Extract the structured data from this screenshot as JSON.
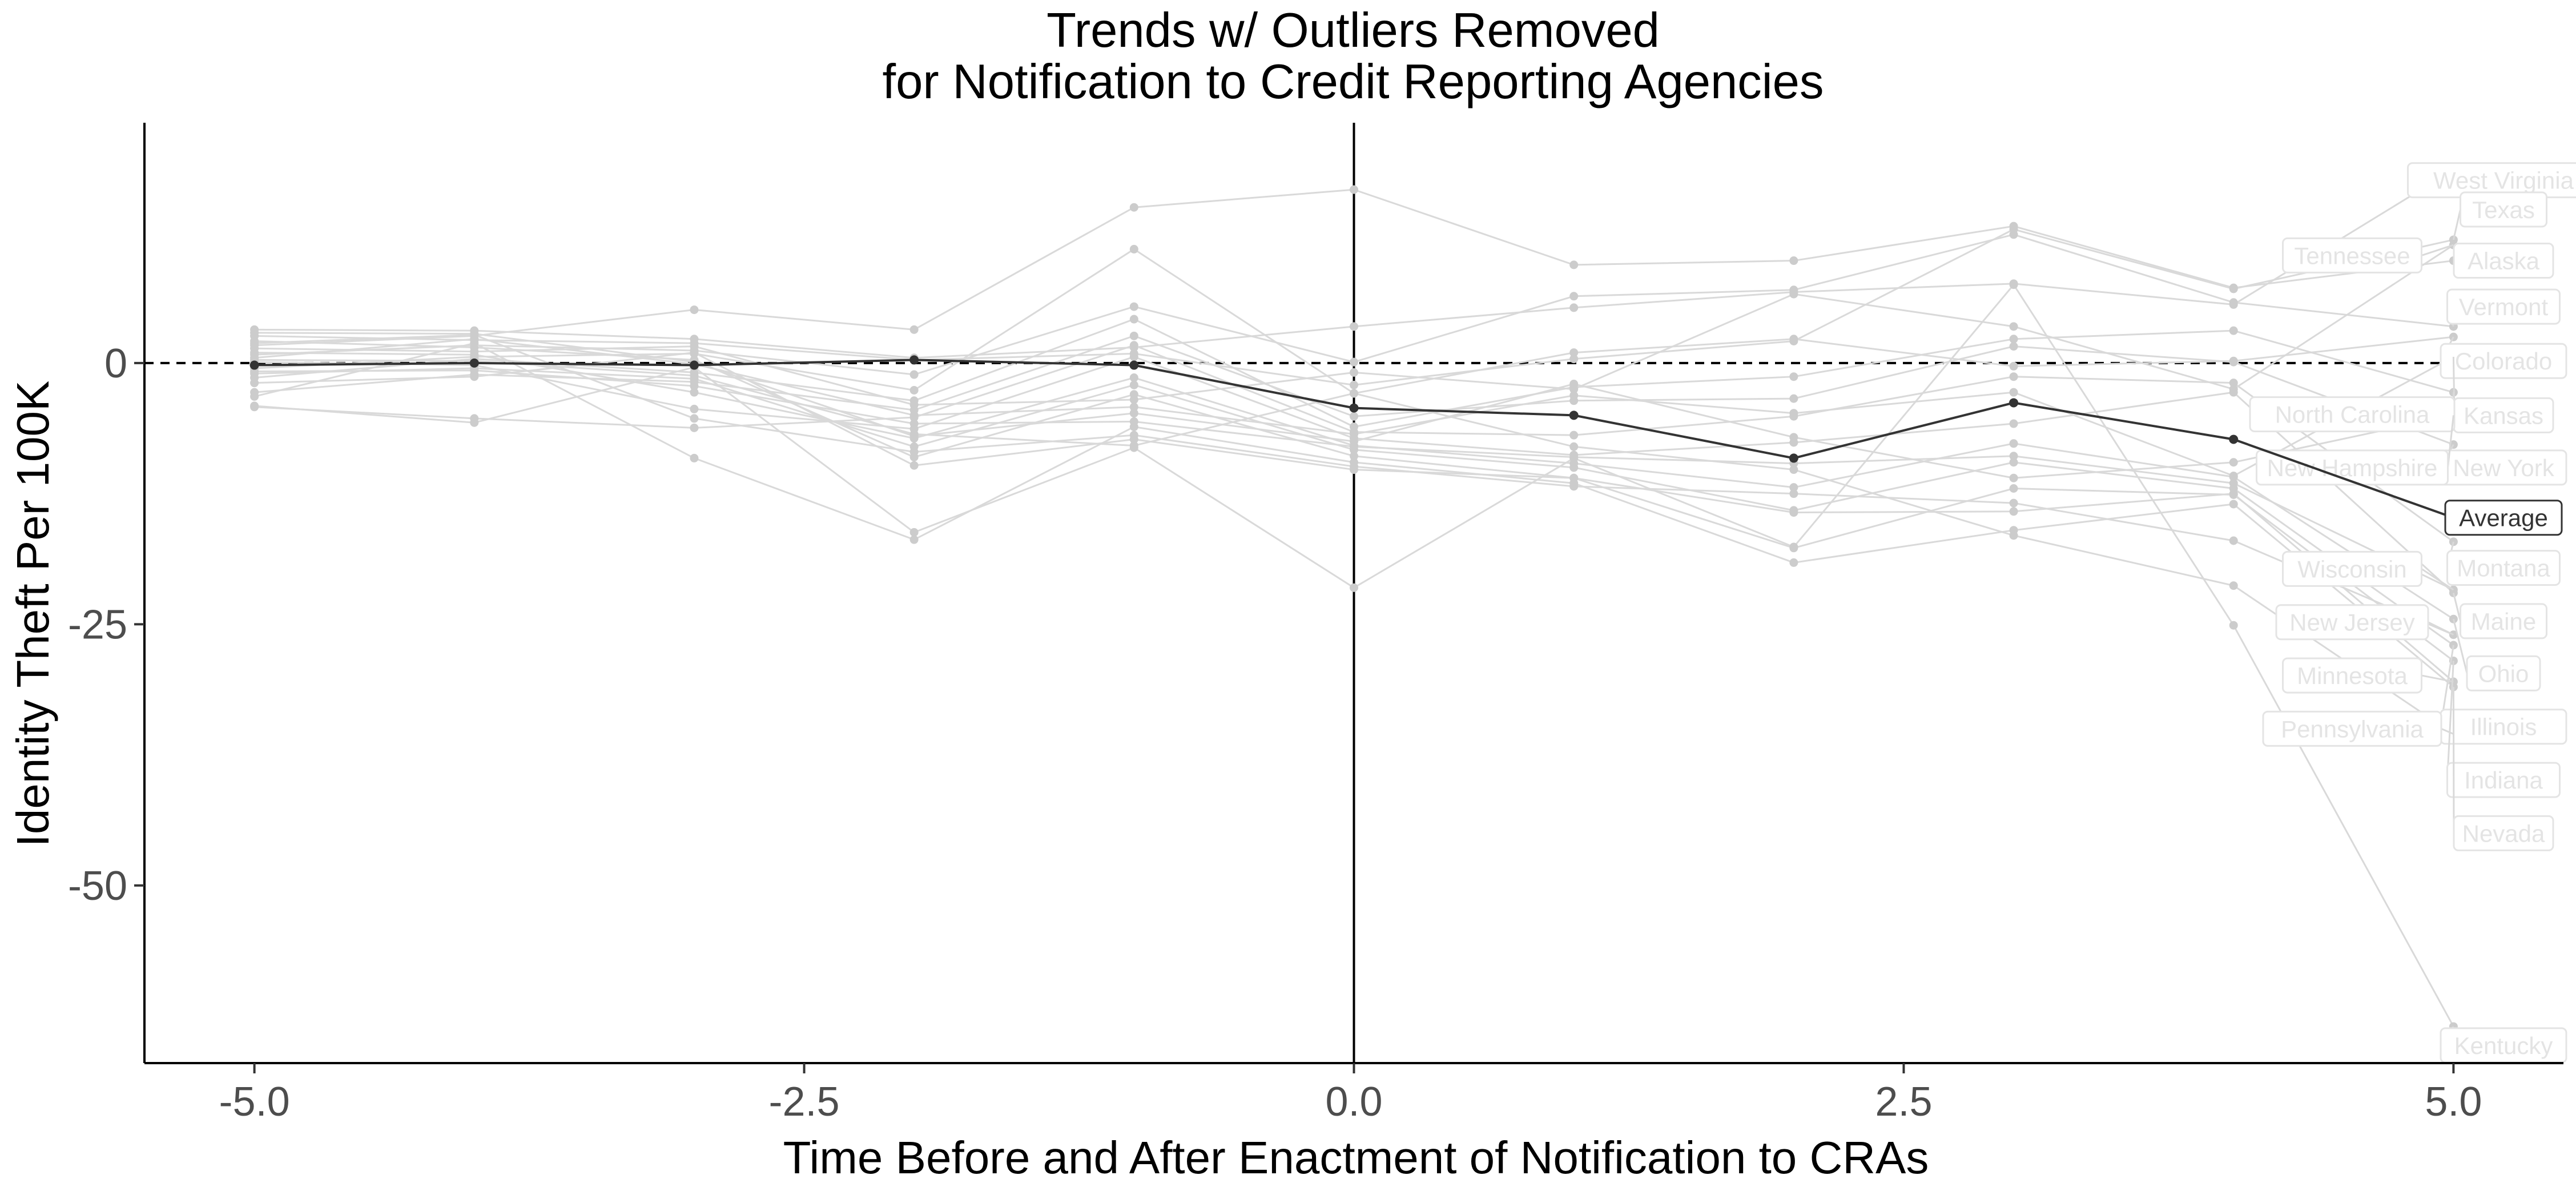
{
  "chart_data": {
    "type": "line",
    "title": "Trends w/ Outliers Removed",
    "subtitle": "for Notification to Credit Reporting Agencies",
    "xlabel": "Time Before and After Enactment of Notification to CRAs",
    "ylabel": "Identity Theft Per 100K",
    "xlim": [
      -5.5,
      5.5
    ],
    "ylim": [
      -67,
      23
    ],
    "x_ticks": [
      -5.0,
      -2.5,
      0.0,
      2.5,
      5.0
    ],
    "x_tick_labels": [
      "-5.0",
      "-2.5",
      "0.0",
      "2.5",
      "5.0"
    ],
    "y_ticks": [
      0,
      -25,
      -50
    ],
    "y_tick_labels": [
      "0",
      "-25",
      "-50"
    ],
    "grid": false,
    "reference_lines": {
      "horizontal_dashed_y": 0,
      "vertical_solid_x": 0
    },
    "x": [
      -5,
      -4,
      -3,
      -2,
      -1,
      0,
      1,
      2,
      3,
      4,
      5
    ],
    "colors": {
      "state": "#d9d9d9",
      "state_point": "#cccccc",
      "state_label": "#e4e4e4",
      "average": "#333333",
      "reference": "#000000"
    },
    "average": {
      "name": "Average",
      "values": [
        -0.2,
        0.0,
        -0.2,
        0.3,
        -0.2,
        -4.3,
        -5.0,
        -9.1,
        -3.8,
        -7.3,
        -14.8
      ]
    },
    "series": [
      {
        "name": "West Virginia",
        "label_at": 17.5,
        "values": [
          3.2,
          3.1,
          2.3,
          0.5,
          1.5,
          3.5,
          5.3,
          6.8,
          7.6,
          5.6,
          18.5
        ]
      },
      {
        "name": "Texas",
        "label_at": 14.7,
        "values": [
          2.6,
          2.2,
          1.9,
          0.3,
          0.9,
          -2.1,
          0.4,
          2.1,
          12.8,
          7.1,
          11.8
        ]
      },
      {
        "name": "Alaska",
        "label_at": 9.8,
        "values": [
          1.7,
          2.6,
          5.1,
          3.2,
          14.9,
          16.6,
          9.4,
          9.8,
          13.1,
          7.2,
          9.8
        ]
      },
      {
        "name": "Vermont",
        "label_at": 5.4,
        "values": [
          0.8,
          1.7,
          1.2,
          -1.1,
          5.4,
          0.1,
          6.4,
          7.0,
          12.3,
          5.8,
          3.5
        ]
      },
      {
        "name": "Colorado",
        "label_at": 0.2,
        "values": [
          -0.5,
          0.6,
          0.9,
          -2.6,
          10.9,
          -2.9,
          1.0,
          2.3,
          -0.3,
          0.2,
          2.5
        ]
      },
      {
        "name": "Kansas",
        "label_at": -5.0,
        "values": [
          -1.4,
          0.4,
          -0.9,
          -3.6,
          4.2,
          -6.1,
          -2.3,
          -1.3,
          2.3,
          3.1,
          -2.8
        ]
      },
      {
        "name": "New York",
        "label_at": -10.0,
        "values": [
          -2.8,
          -1.1,
          -1.8,
          -4.5,
          2.6,
          -5.1,
          -3.6,
          -3.4,
          1.6,
          0.1,
          -7.8
        ]
      },
      {
        "name": "Montana",
        "label_at": -19.6,
        "values": [
          -4.2,
          -5.3,
          -6.2,
          -5.2,
          1.7,
          -6.6,
          -6.9,
          -5.1,
          -1.3,
          -1.9,
          -17.1
        ]
      },
      {
        "name": "Maine",
        "label_at": -24.7,
        "values": [
          0.1,
          -0.2,
          -4.4,
          -6.3,
          0.6,
          -7.2,
          -8.8,
          -7.6,
          -5.8,
          -2.8,
          -22.0
        ]
      },
      {
        "name": "Ohio",
        "label_at": -29.7,
        "values": [
          1.0,
          0.8,
          -2.8,
          -7.2,
          -1.4,
          -7.9,
          -9.6,
          -11.9,
          -7.7,
          -10.9,
          -24.5
        ]
      },
      {
        "name": "Illinois",
        "label_at": -34.8,
        "values": [
          -1.0,
          -0.5,
          -1.5,
          -8.0,
          -2.1,
          -8.3,
          -10.0,
          -14.1,
          -9.5,
          -12.0,
          -27.0
        ]
      },
      {
        "name": "Indiana",
        "label_at": -39.9,
        "values": [
          2.1,
          1.5,
          0.3,
          -9.0,
          -3.0,
          -8.9,
          -11.0,
          -17.7,
          -12.0,
          -12.6,
          -28.5
        ]
      },
      {
        "name": "Nevada",
        "label_at": -45.0,
        "values": [
          -3.2,
          1.9,
          -9.1,
          -16.9,
          -6.1,
          -9.5,
          -11.5,
          -19.1,
          -16.0,
          -13.5,
          -31.0
        ]
      },
      {
        "name": "Kentucky",
        "label_at": -65.3,
        "values": [
          -4.1,
          -5.7,
          -0.4,
          -16.2,
          -8.1,
          -21.5,
          -9.1,
          -17.6,
          7.5,
          -25.1,
          -63.5
        ]
      },
      {
        "name": "Tennessee",
        "label_at": 10.3,
        "values": [
          1.4,
          1.1,
          1.6,
          -4.0,
          -3.5,
          -0.9,
          -2.5,
          6.6,
          3.5,
          -2.5,
          11.3
        ]
      },
      {
        "name": "North Carolina",
        "label_at": -4.9,
        "values": [
          0.5,
          2.3,
          -0.1,
          -5.0,
          -4.2,
          -6.8,
          -3.1,
          -4.8,
          -2.8,
          -10.8,
          0.6
        ]
      },
      {
        "name": "New Hampshire",
        "label_at": -10.0,
        "values": [
          2.9,
          2.8,
          0.1,
          -7.0,
          -4.8,
          -7.5,
          -2.0,
          -7.1,
          -11.0,
          -9.5,
          -5.0
        ]
      },
      {
        "name": "Wisconsin",
        "label_at": -19.7,
        "values": [
          -0.8,
          -0.7,
          -2.2,
          -5.8,
          -5.6,
          -8.0,
          -9.0,
          -9.6,
          -8.9,
          -11.5,
          -21.7
        ]
      },
      {
        "name": "New Jersey",
        "label_at": -24.8,
        "values": [
          1.9,
          2.7,
          -5.3,
          -8.5,
          -6.9,
          -9.9,
          -11.8,
          -12.5,
          -13.4,
          -17.0,
          -26.0
        ]
      },
      {
        "name": "Minnesota",
        "label_at": -29.9,
        "values": [
          -1.9,
          -1.3,
          1.0,
          -9.8,
          -7.3,
          -10.2,
          -11.0,
          -14.3,
          -14.2,
          -12.5,
          -30.5
        ]
      },
      {
        "name": "Pennsylvania",
        "label_at": -35.0,
        "values": [
          0.3,
          0.2,
          -1.2,
          -6.8,
          -7.9,
          -2.9,
          -8.0,
          -10.2,
          -16.5,
          -21.3,
          -35.5
        ]
      }
    ],
    "label_columns": {
      "right": [
        "West Virginia",
        "Texas",
        "Alaska",
        "Vermont",
        "Colorado",
        "Kansas",
        "New York",
        "Montana",
        "Maine",
        "Ohio",
        "Illinois",
        "Indiana",
        "Nevada",
        "Kentucky"
      ],
      "left": [
        "Tennessee",
        "North Carolina",
        "New Hampshire",
        "Wisconsin",
        "New Jersey",
        "Minnesota",
        "Pennsylvania"
      ]
    }
  }
}
